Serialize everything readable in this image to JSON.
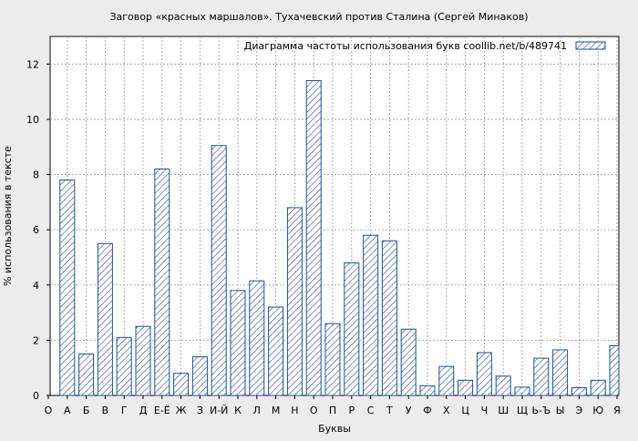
{
  "chart_data": {
    "type": "bar",
    "title": "Заговор «красных маршалов». Тухачевский против Сталина (Сергей Минаков)",
    "xlabel": "Буквы",
    "ylabel": "% использования в тексте",
    "legend": {
      "label": "Диаграмма частоты использования букв  coollib.net/b/489741",
      "placement": "top-right"
    },
    "ylim": [
      0,
      13
    ],
    "yticks": [
      0,
      2,
      4,
      6,
      8,
      10,
      12
    ],
    "grid": true,
    "bar_color": "#1f4e9c",
    "categories": [
      "О",
      "А",
      "Б",
      "В",
      "Г",
      "Д",
      "Е-Ё",
      "Ж",
      "З",
      "И-Й",
      "К",
      "Л",
      "М",
      "Н",
      "О",
      "П",
      "Р",
      "С",
      "Т",
      "У",
      "Ф",
      "Х",
      "Ц",
      "Ч",
      "Ш",
      "Щ",
      "Ь-Ъ",
      "Ы",
      "Э",
      "Ю",
      "Я"
    ],
    "values": [
      null,
      7.8,
      1.5,
      5.5,
      2.1,
      2.5,
      8.2,
      0.8,
      1.4,
      9.05,
      3.8,
      4.15,
      3.2,
      6.8,
      11.4,
      2.6,
      4.8,
      5.8,
      5.6,
      2.4,
      0.35,
      1.05,
      0.55,
      1.55,
      0.7,
      0.3,
      1.35,
      1.65,
      0.28,
      0.55,
      1.8
    ]
  }
}
